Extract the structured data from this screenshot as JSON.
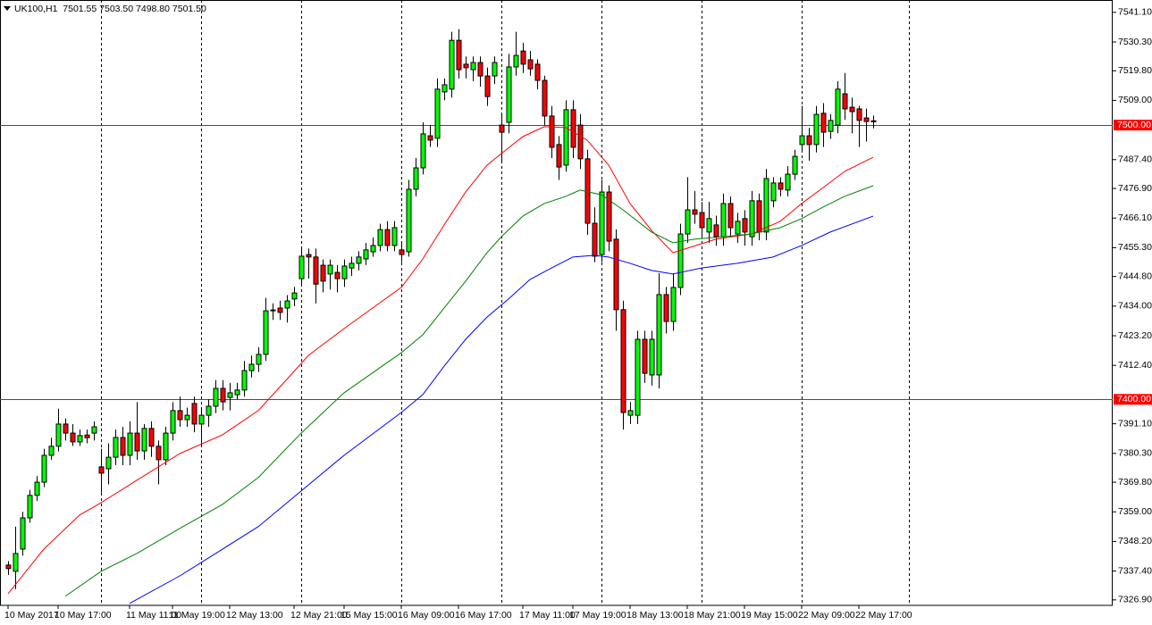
{
  "chart_data": {
    "type": "candlestick",
    "title": "UK100,H1  7501.55 7503.50 7498.80 7501.50",
    "categories": [
      "10 May 2017",
      null,
      null,
      null,
      null,
      null,
      null,
      "10 May 17:00",
      null,
      null,
      null,
      null,
      null,
      null,
      null,
      null,
      null,
      "11 May 11:00",
      null,
      null,
      null,
      null,
      null,
      "11 May 19:00",
      null,
      null,
      null,
      null,
      null,
      null,
      null,
      "12 May 13:00",
      null,
      null,
      null,
      null,
      null,
      null,
      null,
      null,
      "12 May 21:00",
      null,
      null,
      null,
      null,
      null,
      null,
      "15 May 15:00",
      null,
      null,
      null,
      null,
      null,
      null,
      null,
      "16 May 09:00",
      null,
      null,
      null,
      null,
      null,
      null,
      null,
      "16 May 17:00",
      null,
      null,
      null,
      null,
      null,
      null,
      null,
      null,
      "17 May 11:00",
      null,
      null,
      null,
      null,
      null,
      null,
      "17 May 19:00",
      null,
      null,
      null,
      null,
      null,
      null,
      null,
      "18 May 13:00",
      null,
      null,
      null,
      null,
      null,
      null,
      null,
      "18 May 21:00",
      null,
      null,
      null,
      null,
      null,
      null,
      null,
      "19 May 15:00",
      null,
      null,
      null,
      null,
      null,
      null,
      null,
      "22 May 09:00",
      null,
      null,
      null,
      null,
      null,
      null,
      null,
      "22 May 17:00",
      null,
      null
    ],
    "open": [
      7339.6,
      7337.3,
      7345.4,
      7356.8,
      7365.0,
      7369.8,
      7379.6,
      7382.9,
      7391.0,
      7387.7,
      7384.5,
      7387.0,
      7387.7,
      7375.4,
      7374.7,
      7378.9,
      7386.1,
      7379.6,
      7387.7,
      7381.2,
      7389.4,
      7382.9,
      7378.0,
      7387.7,
      7395.9,
      7392.6,
      7398.5,
      7391.0,
      7394.2,
      7397.5,
      7404.0,
      7400.7,
      7401.7,
      7403.4,
      7410.5,
      7412.8,
      7416.4,
      7432.3,
      7433.3,
      7433.3,
      7436.6,
      7444.0,
      7452.8,
      7451.9,
      7448.9,
      7445.7,
      7446.3,
      7444.0,
      7447.9,
      7449.6,
      7451.2,
      7453.8,
      7456.1,
      7461.9,
      7456.1,
      7454.5,
      7453.8,
      7476.6,
      7484.4,
      7496.1,
      7495.2,
      7512.1,
      7513.1,
      7530.9,
      7522.2,
      7520.2,
      7522.8,
      7517.9,
      7517.9,
      7500.0,
      7501.0,
      7521.2,
      7527.0,
      7523.8,
      7522.2,
      7516.3,
      7503.3,
      7492.9,
      7485.4,
      7505.6,
      7500.0,
      7487.7,
      7464.2,
      7452.8,
      7475.6,
      7458.4,
      7432.7,
      7394.2,
      7394.2,
      7421.9,
      7408.9,
      7408.9,
      7438.2,
      7428.4,
      7440.8,
      7460.3,
      7469.1,
      7468.1,
      7461.0,
      7463.6,
      7459.3,
      7471.4,
      7460.3,
      7465.9,
      7459.3,
      7472.4,
      7461.0,
      7472.4,
      7478.9,
      7476.3,
      7482.1,
      7492.9,
      7496.1,
      7492.9,
      7504.3,
      7497.7,
      7500.0,
      7511.4,
      7506.5,
      7505.9,
      7502.6,
      7501.55
    ],
    "high": [
      7341,
      7353.6,
      7359,
      7367,
      7372,
      7382,
      7386,
      7396.6,
      7393,
      7391,
      7389,
      7389,
      7392,
      7382,
      7384,
      7389,
      7390,
      7392,
      7399,
      7391,
      7392,
      7385,
      7390,
      7399,
      7401,
      7397,
      7401,
      7397,
      7400,
      7407,
      7407,
      7406,
      7406,
      7414,
      7416,
      7419,
      7437,
      7435,
      7436,
      7438,
      7441,
      7455,
      7455,
      7455,
      7451,
      7451,
      7449,
      7451,
      7452,
      7454,
      7457,
      7459,
      7464,
      7465,
      7465,
      7457,
      7480,
      7488,
      7501,
      7500,
      7517,
      7517,
      7534,
      7535,
      7525,
      7525,
      7525,
      7521,
      7525,
      7504,
      7526,
      7534,
      7530,
      7527,
      7524,
      7518,
      7507,
      7496,
      7509,
      7509,
      7504,
      7491,
      7470,
      7480,
      7478,
      7462,
      7436,
      7399,
      7425,
      7425,
      7425,
      7446,
      7441,
      7446,
      7464,
      7481,
      7476,
      7472,
      7472,
      7467,
      7475,
      7474,
      7468,
      7469,
      7476,
      7475,
      7484,
      7481,
      7481,
      7485,
      7491,
      7507,
      7499,
      7507,
      7508,
      7504,
      7516,
      7519,
      7510,
      7507,
      7506,
      7503.5
    ],
    "low": [
      7336,
      7330.8,
      7343,
      7355,
      7363,
      7368,
      7378,
      7381,
      7385,
      7383,
      7383,
      7384,
      7385,
      7366,
      7369,
      7376,
      7376,
      7376,
      7378,
      7378,
      7379,
      7369,
      7376,
      7385,
      7390,
      7390,
      7388,
      7383,
      7390,
      7395,
      7396,
      7396,
      7400,
      7401,
      7408,
      7410,
      7414,
      7429,
      7429,
      7428,
      7434,
      7442,
      7444,
      7435,
      7439,
      7440,
      7439,
      7441,
      7445,
      7447,
      7449,
      7452,
      7454,
      7454,
      7454,
      7450,
      7452,
      7474,
      7482,
      7492,
      7492,
      7509,
      7510,
      7517,
      7517,
      7516,
      7514,
      7507,
      7515,
      7487,
      7497,
      7518,
      7519,
      7518,
      7513,
      7500,
      7488,
      7480,
      7483,
      7488,
      7484,
      7460,
      7450,
      7450,
      7454,
      7425,
      7389,
      7391,
      7391,
      7406,
      7405,
      7404,
      7424,
      7425,
      7438,
      7457,
      7464,
      7459,
      7457,
      7456,
      7456,
      7459,
      7457,
      7456,
      7456,
      7458,
      7458,
      7470,
      7474,
      7474,
      7480,
      7490,
      7487,
      7490,
      7492,
      7495,
      7497,
      7502,
      7497,
      7492,
      7494,
      7498.8
    ],
    "close": [
      7338.3,
      7343.8,
      7356.8,
      7365.0,
      7369.8,
      7379.6,
      7382.9,
      7391.0,
      7387.7,
      7384.5,
      7386.8,
      7386.0,
      7390.0,
      7373.1,
      7378.9,
      7386.1,
      7379.6,
      7387.7,
      7381.2,
      7389.4,
      7382.9,
      7378.0,
      7387.7,
      7395.9,
      7392.6,
      7394.2,
      7391.0,
      7394.2,
      7397.5,
      7404.0,
      7399.1,
      7402.4,
      7403.4,
      7410.5,
      7412.8,
      7416.4,
      7432.3,
      7432.6,
      7431.7,
      7435.9,
      7438.8,
      7452.2,
      7451.9,
      7442.0,
      7443.1,
      7448.9,
      7444.0,
      7448.6,
      7449.6,
      7451.9,
      7454.5,
      7456.1,
      7461.9,
      7456.1,
      7462.6,
      7452.8,
      7476.6,
      7484.4,
      7496.8,
      7494.5,
      7513.1,
      7514.7,
      7530.9,
      7520.2,
      7520.9,
      7522.8,
      7517.9,
      7510.4,
      7522.8,
      7497.4,
      7521.2,
      7525.4,
      7522.2,
      7520.5,
      7516.3,
      7503.3,
      7491.9,
      7484.7,
      7505.6,
      7491.9,
      7487.7,
      7464.2,
      7452.2,
      7475.6,
      7457.7,
      7432.7,
      7395.2,
      7395.9,
      7421.9,
      7409.5,
      7421.9,
      7438.2,
      7428.4,
      7440.8,
      7460.3,
      7469.1,
      7467.5,
      7462.6,
      7465.9,
      7459.3,
      7471.4,
      7462.6,
      7464.9,
      7461.0,
      7472.4,
      7461.0,
      7480.5,
      7478.9,
      7476.6,
      7482.1,
      7488.6,
      7496.1,
      7492.9,
      7503.9,
      7497.4,
      7501.7,
      7513.1,
      7505.9,
      7504.9,
      7501.7,
      7501.3,
      7501.5
    ],
    "up_color": "#00ff00",
    "down_color": "#ff0000",
    "wick_color": "#000000",
    "overlays": [
      {
        "color": "#ff0000",
        "x": [
          0,
          5,
          10,
          13,
          18,
          24,
          30,
          35,
          39,
          42,
          47,
          55,
          58,
          61,
          64,
          67,
          69,
          72,
          75,
          78,
          81,
          84,
          87,
          90,
          93,
          95,
          99,
          104,
          108,
          111,
          114,
          117,
          121
        ],
        "values": [
          7329.1,
          7345.4,
          7357.8,
          7362.3,
          7370.5,
          7380.2,
          7387.1,
          7395.9,
          7407.3,
          7416.0,
          7425.8,
          7440.8,
          7451.2,
          7463.6,
          7475.6,
          7485.4,
          7489.6,
          7495.8,
          7499.4,
          7499.1,
          7494.5,
          7485.4,
          7471.4,
          7461.6,
          7453.5,
          7455.1,
          7458.4,
          7460.3,
          7464.9,
          7471.4,
          7477.2,
          7483.1,
          7488.3
        ]
      },
      {
        "color": "#008000",
        "x": [
          8,
          13,
          18,
          24,
          30,
          35,
          41,
          47,
          55,
          58,
          61,
          64,
          67,
          69,
          72,
          75,
          78,
          80,
          83,
          86,
          90,
          93,
          96,
          100,
          104,
          108,
          111,
          114,
          117,
          121
        ],
        "values": [
          7328.2,
          7337.3,
          7343.8,
          7352.9,
          7361.7,
          7371.5,
          7387.7,
          7402.4,
          7417.0,
          7423.5,
          7433.3,
          7443.1,
          7453.5,
          7459.3,
          7466.8,
          7471.4,
          7474.0,
          7476.3,
          7474.6,
          7469.1,
          7461.0,
          7457.1,
          7458.4,
          7459.3,
          7460.3,
          7462.6,
          7465.9,
          7470.1,
          7474.0,
          7477.9
        ]
      },
      {
        "color": "#0000ff",
        "x": [
          17,
          24,
          30,
          35,
          41,
          47,
          55,
          58,
          61,
          64,
          67,
          70,
          73,
          76,
          79,
          82,
          84,
          87,
          90,
          93,
          97,
          102,
          107,
          111,
          115,
          121
        ],
        "values": [
          7325.6,
          7335.6,
          7345.4,
          7353.6,
          7366.6,
          7379.6,
          7395.2,
          7401.7,
          7412.1,
          7421.9,
          7430.0,
          7436.6,
          7443.7,
          7447.9,
          7451.9,
          7452.5,
          7451.9,
          7449.6,
          7447.0,
          7445.7,
          7447.9,
          7449.6,
          7451.9,
          7456.1,
          7461.0,
          7466.8
        ]
      }
    ],
    "levels": [
      {
        "value": 7500,
        "label": "7500.00"
      },
      {
        "value": 7400,
        "label": "7400.00"
      }
    ],
    "level_color": "#ff0000",
    "ylim": [
      7324.9,
      7545.6
    ],
    "yticks": [
      {
        "value": 7541.1,
        "label": "7541.10"
      },
      {
        "value": 7530.3,
        "label": "7530.30"
      },
      {
        "value": 7519.8,
        "label": "7519.80"
      },
      {
        "value": 7509,
        "label": "7509.00"
      },
      {
        "value": 7487.4,
        "label": "7487.40"
      },
      {
        "value": 7476.9,
        "label": "7476.90"
      },
      {
        "value": 7466.1,
        "label": "7466.10"
      },
      {
        "value": 7455.3,
        "label": "7455.30"
      },
      {
        "value": 7444.8,
        "label": "7444.80"
      },
      {
        "value": 7434,
        "label": "7434.00"
      },
      {
        "value": 7423.2,
        "label": "7423.20"
      },
      {
        "value": 7412.4,
        "label": "7412.40"
      },
      {
        "value": 7391.1,
        "label": "7391.10"
      },
      {
        "value": 7380.3,
        "label": "7380.30"
      },
      {
        "value": 7369.8,
        "label": "7369.80"
      },
      {
        "value": 7359,
        "label": "7359.00"
      },
      {
        "value": 7348.2,
        "label": "7348.20"
      },
      {
        "value": 7337.4,
        "label": "7337.40"
      },
      {
        "value": 7326.9,
        "label": "7326.90"
      }
    ]
  }
}
